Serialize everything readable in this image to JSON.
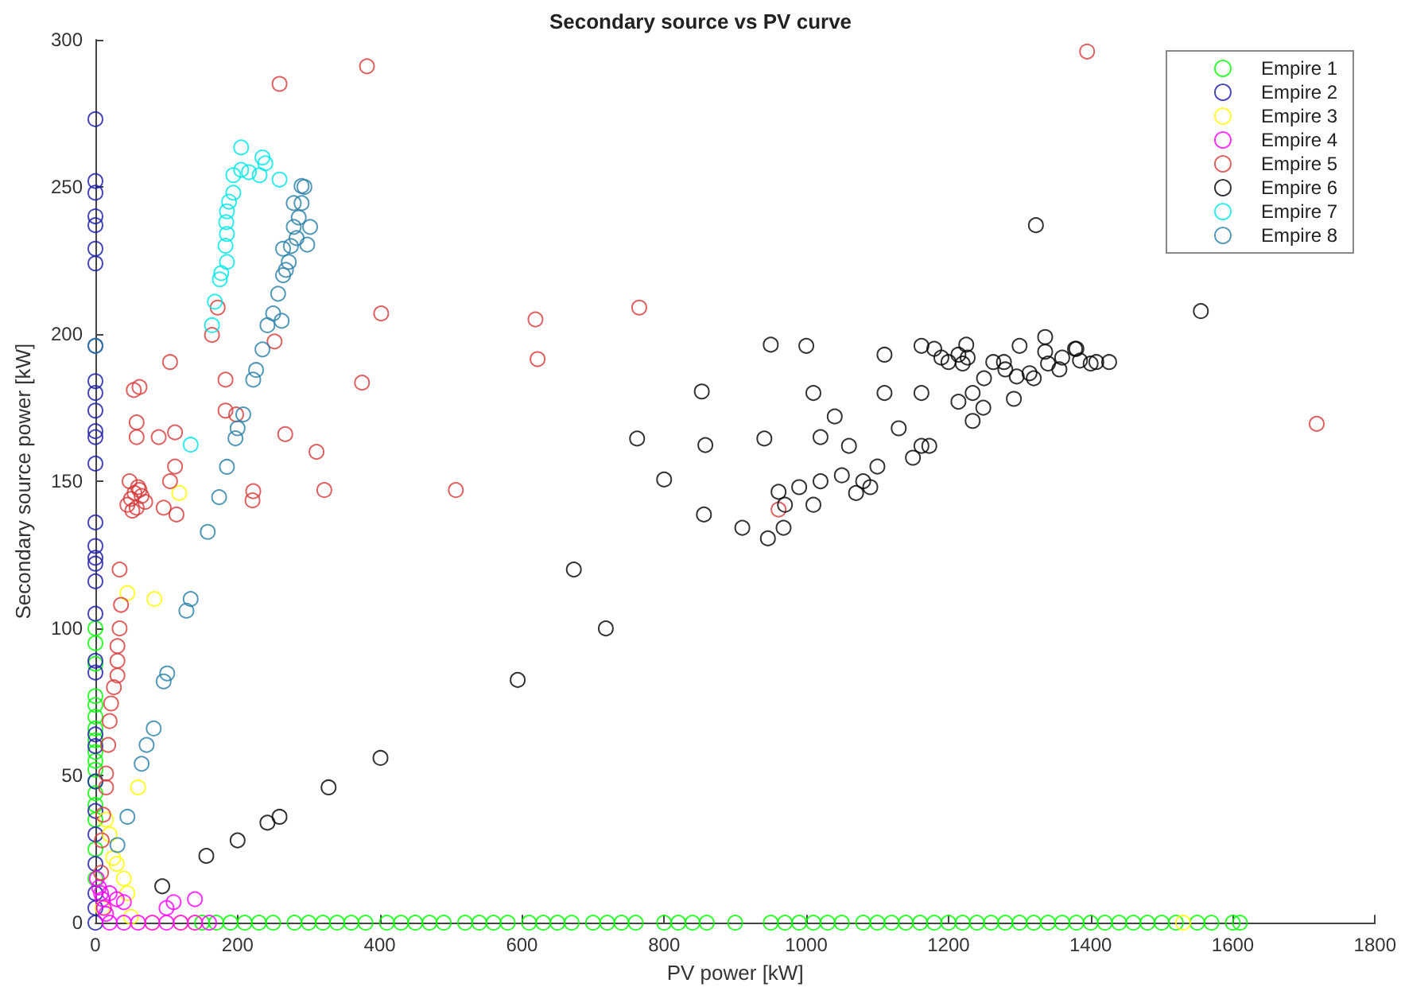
{
  "chart_data": {
    "type": "scatter",
    "title": "Secondary source vs PV curve",
    "xlabel": "PV power [kW]",
    "ylabel": "Secondary source power [kW]",
    "xlim": [
      0,
      1800
    ],
    "xticks": [
      0,
      200,
      400,
      600,
      800,
      1000,
      1200,
      1400,
      1600,
      1800
    ],
    "ylim": [
      0,
      300
    ],
    "yticks": [
      0,
      50,
      100,
      150,
      200,
      250,
      300
    ],
    "grid": false,
    "legend": "top right",
    "marker": "circle",
    "series": [
      {
        "name": "Empire 1",
        "color": "#00ff00",
        "x": [
          0,
          0,
          0,
          0,
          0,
          0,
          0,
          0,
          0,
          0,
          0,
          0,
          0,
          0,
          0,
          0,
          0,
          150,
          170,
          190,
          210,
          230,
          250,
          280,
          300,
          320,
          340,
          360,
          380,
          410,
          430,
          450,
          470,
          490,
          520,
          540,
          560,
          580,
          610,
          630,
          650,
          670,
          700,
          720,
          740,
          760,
          800,
          820,
          840,
          860,
          900,
          950,
          970,
          990,
          1010,
          1030,
          1050,
          1080,
          1100,
          1120,
          1140,
          1160,
          1180,
          1200,
          1220,
          1240,
          1260,
          1280,
          1300,
          1320,
          1340,
          1360,
          1380,
          1400,
          1420,
          1440,
          1460,
          1480,
          1500,
          1520,
          1550,
          1570,
          1600,
          1610
        ],
        "values": [
          100,
          95,
          88,
          77,
          74,
          70,
          66,
          62,
          58,
          55,
          52,
          48,
          44,
          40,
          35,
          25,
          15,
          0,
          0,
          0,
          0,
          0,
          0,
          0,
          0,
          0,
          0,
          0,
          0,
          0,
          0,
          0,
          0,
          0,
          0,
          0,
          0,
          0,
          0,
          0,
          0,
          0,
          0,
          0,
          0,
          0,
          0,
          0,
          0,
          0,
          0,
          0,
          0,
          0,
          0,
          0,
          0,
          0,
          0,
          0,
          0,
          0,
          0,
          0,
          0,
          0,
          0,
          0,
          0,
          0,
          0,
          0,
          0,
          0,
          0,
          0,
          0,
          0,
          0,
          0,
          0,
          0,
          0,
          0
        ]
      },
      {
        "name": "Empire 2",
        "color": "#1a1aa6",
        "x": [
          0,
          0,
          0,
          0,
          0,
          0,
          0,
          0,
          0,
          0,
          0,
          0,
          0,
          0,
          0,
          0,
          0,
          0,
          0,
          0,
          0,
          0,
          0,
          0,
          0,
          0,
          0,
          0,
          0,
          0,
          0
        ],
        "values": [
          273,
          252,
          248,
          240,
          237,
          229,
          224,
          196,
          184,
          180,
          174,
          167,
          165,
          156,
          136,
          128,
          124,
          122,
          116,
          105,
          89,
          85,
          64,
          60,
          48,
          38,
          30,
          20,
          10,
          5,
          0
        ]
      },
      {
        "name": "Empire 3",
        "color": "#ffff00",
        "x": [
          45,
          83,
          118,
          60,
          15,
          20,
          25,
          30,
          40,
          45,
          10,
          50,
          80,
          120,
          140,
          1530
        ],
        "values": [
          112,
          110,
          146,
          46,
          35,
          30,
          22,
          20,
          15,
          10,
          5,
          2,
          0,
          0,
          0,
          0
        ]
      },
      {
        "name": "Empire 4",
        "color": "#ff00ff",
        "x": [
          2,
          5,
          8,
          10,
          12,
          15,
          20,
          30,
          40,
          100,
          110,
          140,
          20,
          40,
          60,
          80,
          100,
          120,
          140,
          160
        ],
        "values": [
          15,
          12,
          10,
          8,
          5,
          3,
          10,
          8,
          7,
          5,
          7,
          8,
          0,
          0,
          0,
          0,
          0,
          0,
          0,
          0
        ]
      },
      {
        "name": "Empire 5",
        "color": "#d63b3b",
        "x": [
          259,
          382,
          1395,
          1718,
          402,
          619,
          622,
          765,
          252,
          375,
          267,
          311,
          322,
          507,
          222,
          221,
          961,
          54,
          62,
          105,
          58,
          58,
          89,
          112,
          172,
          183,
          183,
          198,
          164,
          45,
          50,
          55,
          60,
          65,
          70,
          48,
          52,
          58,
          62,
          34,
          36,
          34,
          31,
          31,
          31,
          26,
          22,
          20,
          18,
          15,
          15,
          11,
          9,
          8,
          114,
          96,
          105,
          112
        ],
        "values": [
          285,
          291,
          296,
          169.5,
          207,
          205,
          191.5,
          209,
          197.5,
          183.5,
          166,
          160,
          147,
          147,
          146.6,
          143.5,
          140.4,
          181,
          182,
          190.5,
          170,
          165,
          165,
          166.6,
          209,
          184.5,
          174,
          172.7,
          199.7,
          142,
          144,
          146,
          148,
          145,
          143,
          150,
          140,
          141,
          147,
          120,
          108,
          100,
          94,
          89,
          84,
          80,
          74.5,
          68.5,
          60.4,
          50.7,
          46,
          36.7,
          28,
          17,
          138.7,
          141,
          150,
          155
        ]
      },
      {
        "name": "Empire 6",
        "color": "#000000",
        "x": [
          94,
          156,
          200,
          242,
          259,
          328,
          401,
          594,
          673,
          718,
          950,
          853,
          762,
          858,
          941,
          800,
          961,
          856,
          910,
          968,
          946,
          1323,
          1555,
          1162,
          1200,
          1214,
          1227,
          1225,
          1214,
          1234,
          1234,
          1249,
          1263,
          1278,
          1292,
          1296,
          1314,
          1336,
          1336,
          1356,
          1378,
          1385,
          1408,
          1426,
          1162,
          1173,
          1162,
          1000,
          1010,
          1020,
          1040,
          1060,
          1080,
          1100,
          1110,
          1110,
          1130,
          1150,
          1180,
          1190,
          1220,
          1250,
          1280,
          1300,
          1320,
          1340,
          1360,
          1380,
          1400,
          970,
          990,
          1010,
          1020,
          1050,
          1070,
          1090
        ],
        "values": [
          12.4,
          22.7,
          28,
          34,
          36,
          46,
          56,
          82.5,
          120,
          100,
          196.4,
          180.5,
          164.5,
          162.3,
          164.5,
          150.6,
          146.4,
          138.7,
          134.2,
          134.2,
          130.6,
          237,
          207.8,
          196,
          190.5,
          193,
          192,
          196.4,
          177,
          180,
          170.5,
          175,
          190.5,
          190.5,
          178,
          185.6,
          186.7,
          199,
          194,
          188,
          195,
          191,
          190.5,
          190.5,
          162,
          162,
          180,
          196,
          180,
          165,
          172,
          162,
          150,
          155,
          180,
          193,
          168,
          158,
          195,
          192,
          190,
          185,
          188,
          196,
          185,
          190,
          192,
          195,
          190,
          142,
          148,
          142,
          150,
          152,
          146,
          148
        ]
      },
      {
        "name": "Empire 7",
        "color": "#00e6e6",
        "x": [
          205,
          235,
          194,
          205,
          216,
          231,
          239,
          259,
          194,
          188,
          185,
          184,
          185,
          183,
          185,
          177,
          175,
          168,
          164,
          134
        ],
        "values": [
          263.4,
          260,
          254,
          255.8,
          255,
          254,
          258,
          252.5,
          248,
          245,
          241.7,
          238,
          234,
          230,
          224.5,
          220.7,
          218.6,
          211,
          203,
          162.4
        ]
      },
      {
        "name": "Empire 8",
        "color": "#2a7fa8",
        "x": [
          290,
          294,
          279,
          290,
          286,
          279,
          302,
          283,
          298,
          275,
          264,
          272,
          268,
          264,
          257,
          250,
          242,
          262,
          235,
          226,
          222,
          208,
          200,
          197,
          185,
          0,
          174,
          158,
          134,
          128,
          101,
          96,
          82,
          72,
          65,
          45,
          31
        ],
        "values": [
          250.3,
          250,
          244.5,
          244.5,
          239.6,
          236.4,
          236.4,
          232.6,
          230.4,
          229.9,
          229,
          224.5,
          221.8,
          220,
          213.7,
          207,
          203,
          204.5,
          194.8,
          187.8,
          184.5,
          172.7,
          168,
          164.6,
          154.9,
          196,
          144.6,
          132.8,
          110,
          106,
          84.7,
          82,
          66,
          60.4,
          54,
          36,
          26.4
        ]
      }
    ]
  }
}
